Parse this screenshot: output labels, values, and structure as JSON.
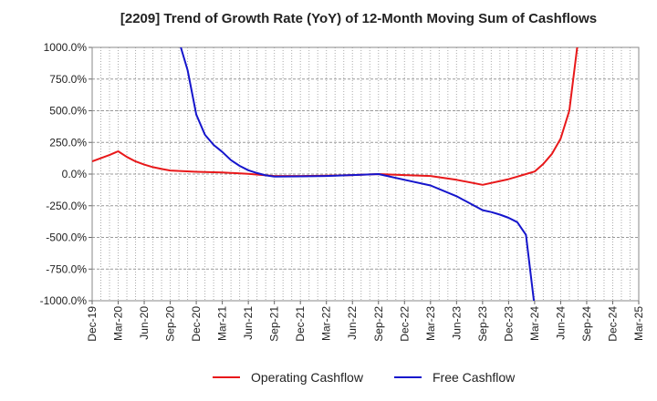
{
  "chart_data": {
    "type": "line",
    "title": "[2209]  Trend of Growth Rate (YoY) of 12-Month Moving Sum of Cashflows",
    "xlabel": "",
    "ylabel": "",
    "ylim": [
      -1000,
      1000
    ],
    "y_ticks": [
      "1000.0%",
      "750.0%",
      "500.0%",
      "250.0%",
      "0.0%",
      "-250.0%",
      "-500.0%",
      "-750.0%",
      "-1000.0%"
    ],
    "x_tick_labels": [
      "Dec-19",
      "Mar-20",
      "Jun-20",
      "Sep-20",
      "Dec-20",
      "Mar-21",
      "Jun-21",
      "Sep-21",
      "Dec-21",
      "Mar-22",
      "Jun-22",
      "Sep-22",
      "Dec-22",
      "Mar-23",
      "Jun-23",
      "Sep-23",
      "Dec-23",
      "Mar-24",
      "Jun-24",
      "Sep-24",
      "Dec-24",
      "Mar-25"
    ],
    "grid": true,
    "legend_position": "bottom",
    "series": [
      {
        "name": "Operating Cashflow",
        "color": "#e8181a",
        "points": [
          [
            "Dec-19",
            100
          ],
          [
            "Jan-20",
            125
          ],
          [
            "Feb-20",
            150
          ],
          [
            "Mar-20",
            180
          ],
          [
            "Apr-20",
            135
          ],
          [
            "May-20",
            100
          ],
          [
            "Jun-20",
            75
          ],
          [
            "Jul-20",
            55
          ],
          [
            "Aug-20",
            40
          ],
          [
            "Sep-20",
            28
          ],
          [
            "Dec-20",
            18
          ],
          [
            "Mar-21",
            12
          ],
          [
            "Jun-21",
            2
          ],
          [
            "Sep-21",
            -15
          ],
          [
            "Dec-21",
            -15
          ],
          [
            "Mar-22",
            -12
          ],
          [
            "Jun-22",
            -8
          ],
          [
            "Sep-22",
            0
          ],
          [
            "Dec-22",
            -8
          ],
          [
            "Mar-23",
            -15
          ],
          [
            "Jun-23",
            -45
          ],
          [
            "Sep-23",
            -85
          ],
          [
            "Dec-23",
            -40
          ],
          [
            "Jan-24",
            -20
          ],
          [
            "Feb-24",
            0
          ],
          [
            "Mar-24",
            20
          ],
          [
            "Apr-24",
            80
          ],
          [
            "May-24",
            160
          ],
          [
            "Jun-24",
            280
          ],
          [
            "Jul-24",
            500
          ],
          [
            "Aug-24",
            1050
          ]
        ]
      },
      {
        "name": "Free Cashflow",
        "color": "#1515cc",
        "points": [
          [
            "Oct-20",
            1050
          ],
          [
            "Nov-20",
            820
          ],
          [
            "Dec-20",
            470
          ],
          [
            "Jan-21",
            310
          ],
          [
            "Feb-21",
            230
          ],
          [
            "Mar-21",
            175
          ],
          [
            "Apr-21",
            110
          ],
          [
            "May-21",
            65
          ],
          [
            "Jun-21",
            30
          ],
          [
            "Jul-21",
            8
          ],
          [
            "Aug-21",
            -10
          ],
          [
            "Sep-21",
            -20
          ],
          [
            "Dec-21",
            -18
          ],
          [
            "Mar-22",
            -15
          ],
          [
            "Jun-22",
            -8
          ],
          [
            "Sep-22",
            0
          ],
          [
            "Dec-22",
            -45
          ],
          [
            "Mar-23",
            -90
          ],
          [
            "Jun-23",
            -175
          ],
          [
            "Sep-23",
            -285
          ],
          [
            "Oct-23",
            -300
          ],
          [
            "Nov-23",
            -320
          ],
          [
            "Dec-23",
            -345
          ],
          [
            "Jan-24",
            -380
          ],
          [
            "Feb-24",
            -480
          ],
          [
            "Mar-24",
            -1050
          ]
        ]
      }
    ]
  }
}
